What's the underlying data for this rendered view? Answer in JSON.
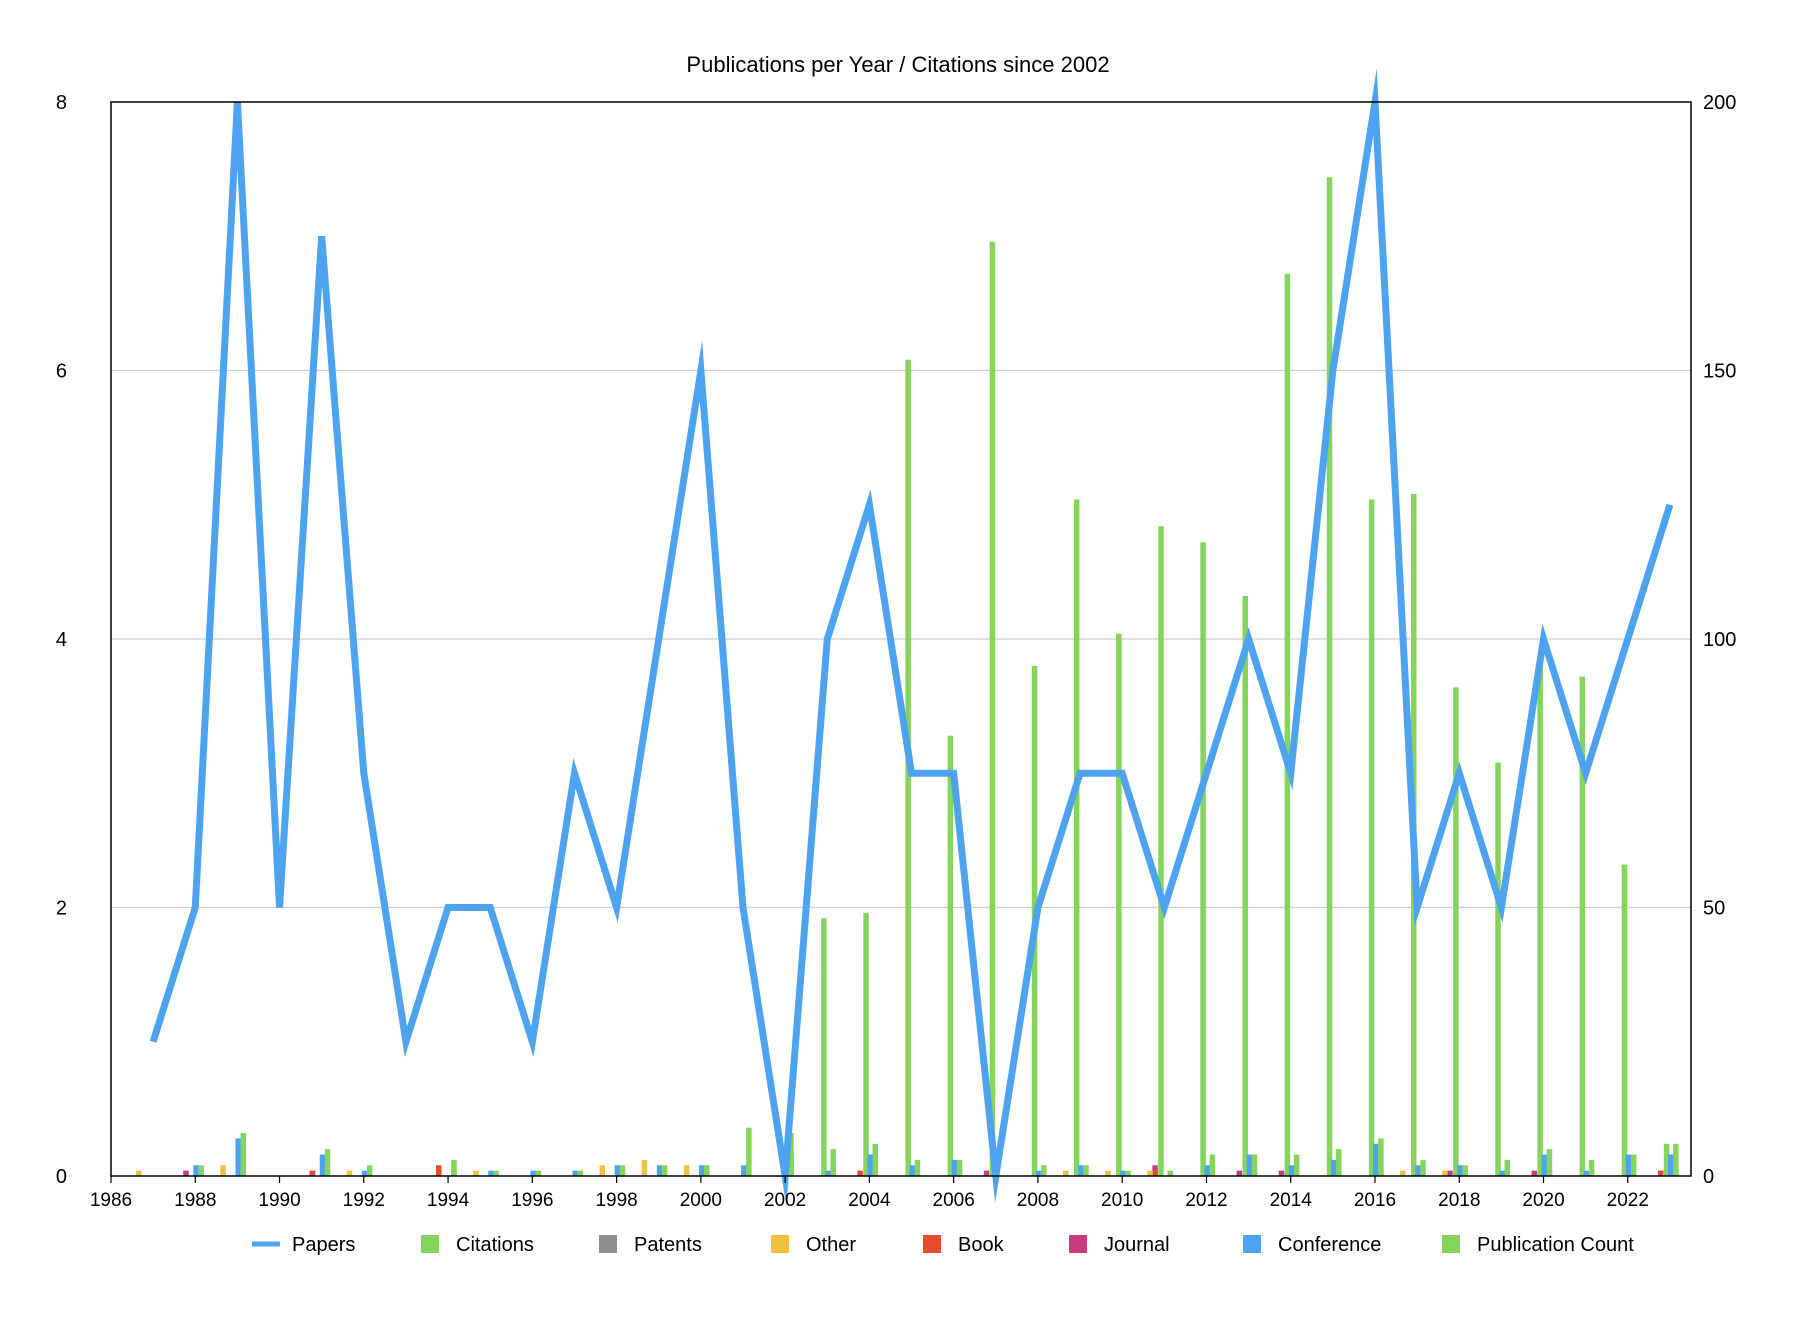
{
  "chart_data": {
    "type": "bar",
    "title": "Publications per Year / Citations since 2002",
    "x": [
      1987,
      1988,
      1989,
      1990,
      1991,
      1992,
      1993,
      1994,
      1995,
      1996,
      1997,
      1998,
      1999,
      2000,
      2001,
      2002,
      2003,
      2004,
      2005,
      2006,
      2007,
      2008,
      2009,
      2010,
      2011,
      2012,
      2013,
      2014,
      2015,
      2016,
      2017,
      2018,
      2019,
      2020,
      2021,
      2022,
      2023
    ],
    "x_ticks": [
      "1986",
      "1988",
      "1990",
      "1992",
      "1994",
      "1996",
      "1998",
      "2000",
      "2002",
      "2004",
      "2006",
      "2008",
      "2010",
      "2012",
      "2014",
      "2016",
      "2018",
      "2020",
      "2022"
    ],
    "xlim": [
      1986,
      2023.5
    ],
    "y_left": {
      "ylim": [
        0,
        8
      ],
      "ticks": [
        "0",
        "2",
        "4",
        "6",
        "8"
      ]
    },
    "y_right": {
      "ylim": [
        0,
        200
      ],
      "ticks": [
        "0",
        "50",
        "100",
        "150",
        "200"
      ]
    },
    "grid": "horizontal",
    "legend_position": "bottom",
    "series": [
      {
        "name": "Papers",
        "kind": "line",
        "axis": "left",
        "color": "#4da3f0",
        "values": [
          1,
          2,
          8,
          2,
          7,
          3,
          1,
          2,
          2,
          1,
          3,
          2,
          4,
          6,
          2,
          0,
          4,
          5,
          3,
          3,
          0,
          2,
          3,
          3,
          2,
          3,
          4,
          3,
          6,
          8,
          2,
          3,
          2,
          4,
          3,
          4,
          5
        ]
      },
      {
        "name": "Citations",
        "kind": "bar",
        "axis": "right",
        "color": "#85d55d",
        "values": [
          0,
          0,
          0,
          0,
          0,
          0,
          0,
          0,
          0,
          0,
          0,
          0,
          0,
          0,
          0,
          0,
          48,
          49,
          152,
          82,
          174,
          95,
          126,
          101,
          121,
          118,
          108,
          168,
          186,
          126,
          127,
          91,
          77,
          96,
          93,
          58,
          6
        ]
      },
      {
        "name": "Patents",
        "kind": "bar",
        "axis": "left",
        "color": "#8e8e8e",
        "values": [
          0,
          0,
          0,
          0,
          0,
          0,
          0,
          0.04,
          0,
          0,
          0,
          0,
          0,
          0,
          0,
          0.16,
          0.08,
          0,
          0,
          0,
          0,
          0,
          0,
          0,
          0,
          0,
          0.04,
          0.04,
          0.04,
          0.04,
          0,
          0,
          0.04,
          0.04,
          0,
          0,
          0
        ]
      },
      {
        "name": "Other",
        "kind": "bar",
        "axis": "left",
        "color": "#f0c042",
        "values": [
          0.04,
          0,
          0.08,
          0,
          0,
          0.04,
          0,
          0,
          0.04,
          0,
          0,
          0.08,
          0.12,
          0.08,
          0,
          0,
          0,
          0,
          0,
          0,
          0,
          0,
          0.04,
          0.04,
          0.04,
          0,
          0,
          0,
          0,
          0,
          0.04,
          0.04,
          0,
          0,
          0,
          0,
          0
        ]
      },
      {
        "name": "Book",
        "kind": "bar",
        "axis": "left",
        "color": "#e84a2e",
        "values": [
          0,
          0,
          0,
          0,
          0.04,
          0,
          0,
          0.08,
          0,
          0,
          0,
          0,
          0,
          0,
          0,
          0,
          0,
          0.04,
          0,
          0,
          0,
          0,
          0,
          0,
          0.04,
          0,
          0,
          0,
          0,
          0,
          0,
          0,
          0,
          0,
          0,
          0,
          0.04
        ]
      },
      {
        "name": "Journal",
        "kind": "bar",
        "axis": "left",
        "color": "#c93a80",
        "values": [
          0,
          0.04,
          0,
          0,
          0.04,
          0,
          0,
          0,
          0,
          0,
          0,
          0,
          0,
          0,
          0,
          0,
          0,
          0,
          0,
          0,
          0.04,
          0,
          0,
          0,
          0.08,
          0,
          0.04,
          0.04,
          0,
          0,
          0,
          0.04,
          0,
          0.04,
          0,
          0,
          0.04
        ]
      },
      {
        "name": "Conference",
        "kind": "bar",
        "axis": "left",
        "color": "#4da3f0",
        "values": [
          0,
          0.08,
          0.28,
          0,
          0.16,
          0.04,
          0,
          0,
          0.04,
          0.04,
          0.04,
          0.08,
          0.08,
          0.08,
          0.08,
          0,
          0.04,
          0.16,
          0.08,
          0.12,
          0,
          0.04,
          0.08,
          0.04,
          0,
          0.08,
          0.16,
          0.08,
          0.12,
          0.24,
          0.08,
          0.08,
          0.04,
          0.16,
          0.04,
          0.16,
          0.16
        ]
      },
      {
        "name": "Publication Count",
        "kind": "bar",
        "axis": "left",
        "color": "#85d55d",
        "values": [
          0,
          0.08,
          0.32,
          0,
          0.2,
          0.08,
          0,
          0.12,
          0.04,
          0.04,
          0.04,
          0.08,
          0.08,
          0.08,
          0.36,
          0.32,
          0.2,
          0.24,
          0.12,
          0.12,
          0,
          0.08,
          0.08,
          0.04,
          0.04,
          0.16,
          0.16,
          0.16,
          0.2,
          0.28,
          0.12,
          0.08,
          0.12,
          0.2,
          0.12,
          0.16,
          0.24
        ]
      }
    ],
    "legend": [
      {
        "name": "Papers",
        "marker": "line",
        "color": "#4da3f0"
      },
      {
        "name": "Citations",
        "marker": "square",
        "color": "#85d55d"
      },
      {
        "name": "Patents",
        "marker": "square",
        "color": "#8e8e8e"
      },
      {
        "name": "Other",
        "marker": "square",
        "color": "#f0c042"
      },
      {
        "name": "Book",
        "marker": "square",
        "color": "#e84a2e"
      },
      {
        "name": "Journal",
        "marker": "square",
        "color": "#c93a80"
      },
      {
        "name": "Conference",
        "marker": "square",
        "color": "#4da3f0"
      },
      {
        "name": "Publication Count",
        "marker": "square",
        "color": "#85d55d"
      }
    ]
  }
}
